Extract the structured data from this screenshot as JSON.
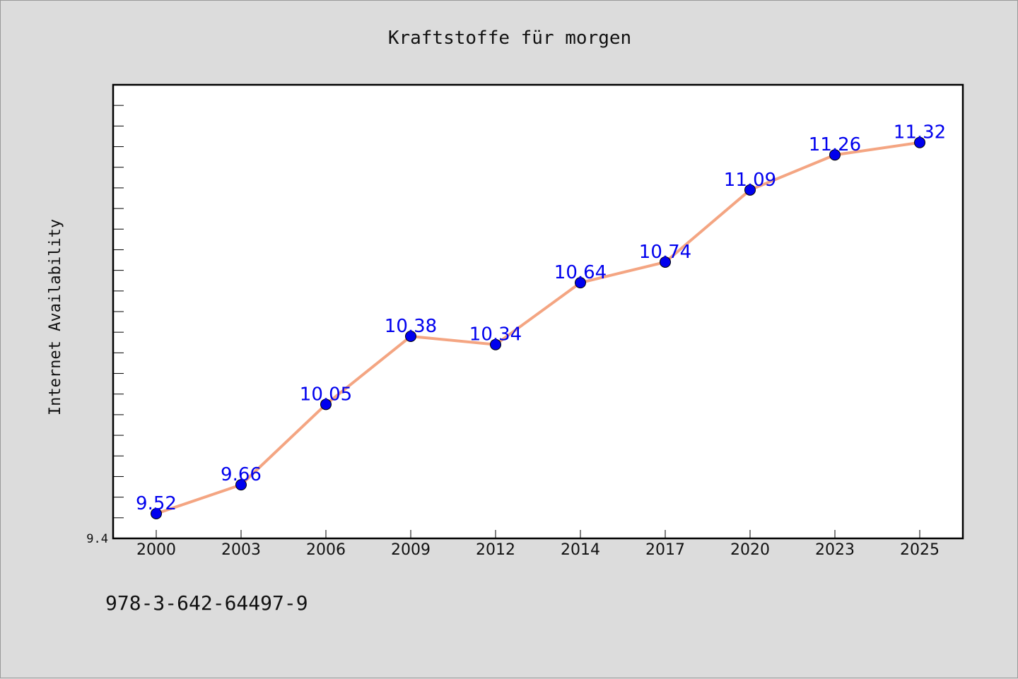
{
  "chart_data": {
    "type": "line",
    "title": "Kraftstoffe für morgen",
    "xlabel": "",
    "ylabel": "Internet Availability",
    "categories": [
      "2000",
      "2003",
      "2006",
      "2009",
      "2012",
      "2014",
      "2017",
      "2020",
      "2023",
      "2025"
    ],
    "values": [
      9.52,
      9.66,
      10.05,
      10.38,
      10.34,
      10.64,
      10.74,
      11.09,
      11.26,
      11.32
    ],
    "data_labels": [
      "9.52",
      "9.66",
      "10.05",
      "10.38",
      "10.34",
      "10.64",
      "10.74",
      "11.09",
      "11.26",
      "11.32"
    ],
    "ylim": [
      9.4,
      11.6
    ],
    "y_tick_labels": [
      "9.4"
    ],
    "y_minor_tick_step": 0.1,
    "grid": false,
    "line_color": "#f4a582",
    "marker_color": "#0000ee",
    "label_color": "#0000ee",
    "annotation": "978-3-642-64497-9"
  }
}
